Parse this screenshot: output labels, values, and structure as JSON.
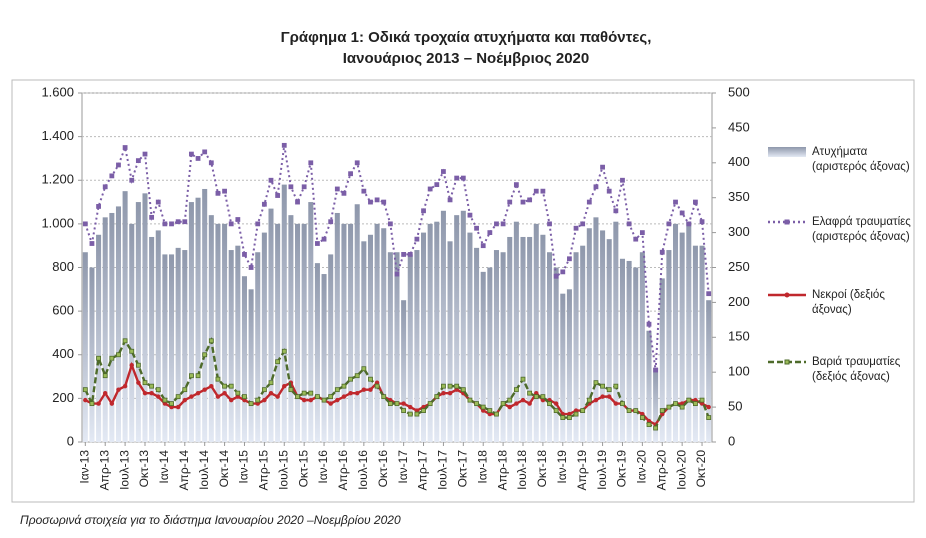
{
  "chart_data": {
    "type": "bar-line",
    "title": "Γράφημα 1: Οδικά τροχαία ατυχήματα και παθόντες,",
    "subtitle": "Ιανουάριος 2013 – Νοέμβριος 2020",
    "note": "Προσωρινά στοιχεία για το διάστημα Ιανουαρίου 2020 –Νοεμβρίου 2020",
    "categories": [
      "Ιαν-13",
      null,
      null,
      "Απρ-13",
      null,
      null,
      "Ιουλ-13",
      null,
      null,
      "Οκτ-13",
      null,
      null,
      "Ιαν-14",
      null,
      null,
      "Απρ-14",
      null,
      null,
      "Ιουλ-14",
      null,
      null,
      "Οκτ-14",
      null,
      null,
      "Ιαν-15",
      null,
      null,
      "Απρ-15",
      null,
      null,
      "Ιουλ-15",
      null,
      null,
      "Οκτ-15",
      null,
      null,
      "Ιαν-16",
      null,
      null,
      "Απρ-16",
      null,
      null,
      "Ιουλ-16",
      null,
      null,
      "Οκτ-16",
      null,
      null,
      "Ιαν-17",
      null,
      null,
      "Απρ-17",
      null,
      null,
      "Ιουλ-17",
      null,
      null,
      "Οκτ-17",
      null,
      null,
      "Ιαν-18",
      null,
      null,
      "Απρ-18",
      null,
      null,
      "Ιουλ-18",
      null,
      null,
      "Οκτ-18",
      null,
      null,
      "Ιαν-19",
      null,
      null,
      "Απρ-19",
      null,
      null,
      "Ιουλ-19",
      null,
      null,
      "Οκτ-19",
      null,
      null,
      "Ιαν-20",
      null,
      null,
      "Απρ-20",
      null,
      null,
      "Ιουλ-20",
      null,
      null,
      "Οκτ-20",
      null
    ],
    "series": [
      {
        "name": "Ατυχήματα (αριστερός άξονας)",
        "type": "bar",
        "color": "#8e97ab",
        "values": [
          870,
          800,
          950,
          1030,
          1050,
          1080,
          1150,
          1000,
          1100,
          1140,
          940,
          970,
          860,
          860,
          890,
          880,
          1100,
          1120,
          1160,
          1040,
          1000,
          1000,
          880,
          900,
          760,
          700,
          870,
          960,
          1070,
          1000,
          1180,
          1040,
          1000,
          1000,
          1100,
          820,
          770,
          860,
          1050,
          1000,
          1000,
          1090,
          920,
          950,
          1000,
          980,
          870,
          870,
          650,
          860,
          880,
          960,
          1000,
          1010,
          1060,
          920,
          1040,
          1060,
          960,
          890,
          780,
          800,
          880,
          870,
          940,
          1010,
          940,
          940,
          1000,
          950,
          870,
          800,
          680,
          700,
          870,
          900,
          980,
          1030,
          970,
          930,
          1010,
          840,
          830,
          800,
          870,
          510,
          340,
          750,
          880,
          1000,
          960,
          1010,
          900,
          900,
          650
        ]
      },
      {
        "name": "Ελαφρά τραυματίες (αριστερός άξονας)",
        "type": "line",
        "dash": "dotted",
        "marker": "square",
        "color": "#7b5ea7",
        "values": [
          1000,
          910,
          1080,
          1170,
          1220,
          1270,
          1350,
          1200,
          1290,
          1320,
          1030,
          1100,
          1000,
          1000,
          1010,
          1010,
          1320,
          1300,
          1330,
          1280,
          1140,
          1150,
          1000,
          1020,
          860,
          800,
          1000,
          1090,
          1200,
          1130,
          1360,
          1170,
          1100,
          1170,
          1280,
          910,
          930,
          1010,
          1160,
          1140,
          1230,
          1280,
          1150,
          1100,
          1110,
          1100,
          1000,
          770,
          860,
          860,
          930,
          1060,
          1160,
          1180,
          1240,
          1110,
          1210,
          1210,
          1040,
          980,
          900,
          960,
          1000,
          1000,
          1100,
          1180,
          1100,
          1110,
          1150,
          1150,
          1000,
          760,
          780,
          840,
          980,
          1000,
          1100,
          1170,
          1260,
          1150,
          1060,
          1200,
          1000,
          930,
          960,
          540,
          330,
          870,
          1000,
          1100,
          1050,
          1000,
          1100,
          1010,
          680
        ]
      },
      {
        "name": "Νεκροί (δεξιός άξονας)",
        "type": "line",
        "axis": "y2",
        "dash": "solid",
        "marker": "circle",
        "color": "#c0282d",
        "values": [
          60,
          55,
          55,
          70,
          55,
          75,
          80,
          110,
          85,
          70,
          70,
          65,
          55,
          50,
          50,
          60,
          65,
          70,
          75,
          80,
          65,
          70,
          60,
          65,
          60,
          55,
          55,
          60,
          70,
          65,
          80,
          85,
          65,
          60,
          60,
          65,
          60,
          55,
          60,
          65,
          70,
          70,
          75,
          75,
          85,
          65,
          60,
          55,
          55,
          50,
          45,
          50,
          55,
          65,
          70,
          70,
          75,
          70,
          60,
          55,
          45,
          40,
          40,
          55,
          50,
          55,
          60,
          55,
          70,
          60,
          60,
          55,
          40,
          40,
          45,
          45,
          55,
          60,
          65,
          65,
          55,
          55,
          45,
          45,
          40,
          30,
          25,
          40,
          50,
          55,
          55,
          60,
          60,
          55,
          50
        ]
      },
      {
        "name": "Βαριά τραυματίες (δεξιός άξονας)",
        "type": "line",
        "axis": "y2",
        "dash": "dashed",
        "marker": "square",
        "color": "#4e6b2a",
        "values": [
          75,
          55,
          120,
          95,
          120,
          125,
          145,
          130,
          110,
          85,
          80,
          75,
          60,
          55,
          65,
          75,
          95,
          95,
          125,
          145,
          90,
          80,
          80,
          70,
          65,
          55,
          60,
          75,
          85,
          115,
          130,
          75,
          65,
          70,
          70,
          65,
          60,
          65,
          75,
          80,
          90,
          95,
          105,
          90,
          80,
          65,
          55,
          55,
          45,
          40,
          40,
          45,
          55,
          65,
          80,
          80,
          80,
          75,
          60,
          55,
          50,
          45,
          40,
          55,
          60,
          75,
          90,
          70,
          65,
          65,
          55,
          45,
          35,
          35,
          40,
          45,
          60,
          85,
          80,
          75,
          80,
          55,
          45,
          45,
          35,
          25,
          20,
          45,
          50,
          55,
          50,
          60,
          55,
          60,
          35
        ]
      }
    ],
    "ylim": [
      0,
      1600
    ],
    "yticks": [
      0,
      200,
      400,
      600,
      800,
      {
        "value": 1000,
        "label": "1.000"
      },
      {
        "value": 1200,
        "label": "1.200"
      },
      {
        "value": 1400,
        "label": "1.400"
      },
      {
        "value": 1600,
        "label": "1.600"
      }
    ],
    "y2lim": [
      0,
      500
    ],
    "y2ticks": [
      0,
      50,
      100,
      150,
      200,
      250,
      300,
      350,
      400,
      450,
      500
    ],
    "grid": true,
    "legend": "right"
  }
}
